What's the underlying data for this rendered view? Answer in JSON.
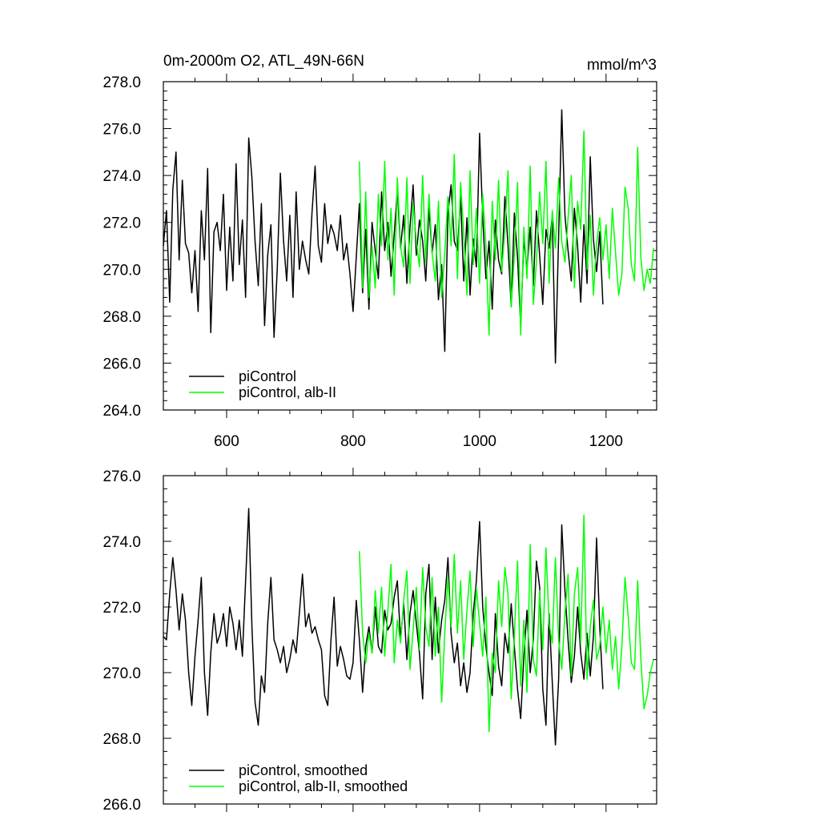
{
  "chart_data": [
    {
      "type": "line",
      "title_left": "0m-2000m O2, ATL_49N-66N",
      "title_right": "mmol/m^3",
      "xlim": [
        500,
        1280
      ],
      "ylim": [
        264,
        278
      ],
      "x_ticks": [
        600,
        800,
        1000,
        1200
      ],
      "x_tick_labels": [
        "600",
        "800",
        "1000",
        "1200"
      ],
      "y_ticks": [
        264,
        266,
        268,
        270,
        272,
        274,
        276,
        278
      ],
      "y_tick_labels": [
        "264.0",
        "266.0",
        "268.0",
        "270.0",
        "272.0",
        "274.0",
        "276.0",
        "278.0"
      ],
      "legend_position": "bottom-left",
      "series": [
        {
          "name": "piControl",
          "color": "#000000",
          "x": [
            500,
            505,
            510,
            515,
            520,
            525,
            530,
            535,
            540,
            545,
            550,
            555,
            560,
            565,
            570,
            575,
            580,
            585,
            590,
            595,
            600,
            605,
            610,
            615,
            620,
            625,
            630,
            635,
            640,
            645,
            650,
            655,
            660,
            665,
            670,
            675,
            680,
            685,
            690,
            695,
            700,
            705,
            710,
            715,
            720,
            725,
            730,
            735,
            740,
            745,
            750,
            755,
            760,
            765,
            770,
            775,
            780,
            785,
            790,
            795,
            800,
            805,
            810,
            815,
            820,
            825,
            830,
            835,
            840,
            845,
            850,
            855,
            860,
            865,
            870,
            875,
            880,
            885,
            890,
            895,
            900,
            905,
            910,
            915,
            920,
            925,
            930,
            935,
            940,
            945,
            950,
            955,
            960,
            965,
            970,
            975,
            980,
            985,
            990,
            995,
            1000,
            1005,
            1010,
            1015,
            1020,
            1025,
            1030,
            1035,
            1040,
            1045,
            1050,
            1055,
            1060,
            1065,
            1070,
            1075,
            1080,
            1085,
            1090,
            1095,
            1100,
            1105,
            1110,
            1115,
            1120,
            1125,
            1130,
            1135,
            1140,
            1145,
            1150,
            1155,
            1160,
            1165,
            1170,
            1175,
            1180,
            1185,
            1190,
            1195
          ],
          "values": [
            271.0,
            272.5,
            268.6,
            273.4,
            275.0,
            270.4,
            273.8,
            271.1,
            270.7,
            269.0,
            270.8,
            268.2,
            272.5,
            270.4,
            274.3,
            267.3,
            271.6,
            272.0,
            270.8,
            273.2,
            269.1,
            271.8,
            269.5,
            274.5,
            270.2,
            272.1,
            268.8,
            275.6,
            273.9,
            271.2,
            269.3,
            272.8,
            267.6,
            270.6,
            271.9,
            267.1,
            270.0,
            274.1,
            271.2,
            269.5,
            272.3,
            268.8,
            273.3,
            270.0,
            271.2,
            270.4,
            269.8,
            272.4,
            274.4,
            271.0,
            270.3,
            272.8,
            271.1,
            271.9,
            271.5,
            270.8,
            272.3,
            270.4,
            271.1,
            269.8,
            268.2,
            270.5,
            272.8,
            269.0,
            271.7,
            268.3,
            272.0,
            270.8,
            269.6,
            273.3,
            270.8,
            272.0,
            269.7,
            271.5,
            273.4,
            270.9,
            272.3,
            269.4,
            271.8,
            273.6,
            270.6,
            272.1,
            271.2,
            269.5,
            272.6,
            270.7,
            271.9,
            268.7,
            270.2,
            266.5,
            272.4,
            273.6,
            271.2,
            270.8,
            273.1,
            269.5,
            272.2,
            268.9,
            271.3,
            270.1,
            275.8,
            272.2,
            269.6,
            271.2,
            268.3,
            272.1,
            270.4,
            269.8,
            273.1,
            271.0,
            268.4,
            272.4,
            270.5,
            267.6,
            271.3,
            270.0,
            271.8,
            269.3,
            272.5,
            270.6,
            268.5,
            271.7,
            270.9,
            272.3,
            266.0,
            271.4,
            276.8,
            272.3,
            270.8,
            269.5,
            272.6,
            271.0,
            268.6,
            271.9,
            269.4,
            274.8,
            271.3,
            269.9,
            271.6,
            268.5
          ],
          "legend_label": "piControl"
        },
        {
          "name": "piControl, alb-II",
          "color": "#00ff00",
          "x": [
            810,
            815,
            820,
            825,
            830,
            835,
            840,
            845,
            850,
            855,
            860,
            865,
            870,
            875,
            880,
            885,
            890,
            895,
            900,
            905,
            910,
            915,
            920,
            925,
            930,
            935,
            940,
            945,
            950,
            955,
            960,
            965,
            970,
            975,
            980,
            985,
            990,
            995,
            1000,
            1005,
            1010,
            1015,
            1020,
            1025,
            1030,
            1035,
            1040,
            1045,
            1050,
            1055,
            1060,
            1065,
            1070,
            1075,
            1080,
            1085,
            1090,
            1095,
            1100,
            1105,
            1110,
            1115,
            1120,
            1125,
            1130,
            1135,
            1140,
            1145,
            1150,
            1155,
            1160,
            1165,
            1170,
            1175,
            1180,
            1185,
            1190,
            1195,
            1200,
            1205,
            1210,
            1215,
            1220,
            1225,
            1230,
            1235,
            1240,
            1245,
            1250,
            1255,
            1260,
            1265,
            1270,
            1275
          ],
          "values": [
            274.6,
            269.2,
            273.3,
            268.8,
            271.0,
            269.2,
            273.2,
            271.0,
            274.6,
            270.4,
            272.6,
            268.9,
            273.9,
            271.0,
            270.1,
            273.9,
            269.4,
            272.8,
            271.2,
            270.1,
            274.0,
            270.3,
            273.2,
            270.7,
            269.5,
            272.9,
            268.8,
            270.7,
            273.1,
            271.0,
            274.9,
            269.6,
            273.7,
            271.5,
            268.9,
            274.2,
            270.2,
            272.6,
            269.4,
            273.2,
            271.0,
            267.2,
            272.9,
            270.4,
            273.8,
            269.9,
            271.7,
            274.2,
            268.4,
            270.6,
            273.7,
            267.2,
            271.8,
            269.6,
            274.4,
            268.5,
            270.3,
            273.3,
            271.1,
            274.6,
            269.4,
            272.5,
            270.9,
            273.9,
            271.2,
            270.3,
            272.2,
            274.0,
            269.2,
            272.9,
            271.7,
            275.9,
            270.0,
            272.3,
            268.9,
            271.1,
            272.2,
            270.4,
            271.9,
            269.6,
            272.6,
            270.7,
            268.9,
            269.8,
            273.5,
            272.6,
            270.2,
            269.5,
            275.2,
            270.5,
            269.1,
            270.0,
            269.4,
            270.9
          ],
          "legend_label": "piControl, alb-II"
        }
      ]
    },
    {
      "type": "line",
      "xlim": [
        500,
        1280
      ],
      "ylim": [
        266,
        276
      ],
      "x_ticks": [
        600,
        800,
        1000,
        1200
      ],
      "y_ticks": [
        266,
        268,
        270,
        272,
        274,
        276
      ],
      "y_tick_labels": [
        "266.0",
        "268.0",
        "270.0",
        "272.0",
        "274.0",
        "276.0"
      ],
      "legend_position": "bottom-left",
      "series": [
        {
          "name": "piControl, smoothed",
          "color": "#000000",
          "x": [
            500,
            505,
            510,
            515,
            520,
            525,
            530,
            535,
            540,
            545,
            550,
            555,
            560,
            565,
            570,
            575,
            580,
            585,
            590,
            595,
            600,
            605,
            610,
            615,
            620,
            625,
            630,
            635,
            640,
            645,
            650,
            655,
            660,
            665,
            670,
            675,
            680,
            685,
            690,
            695,
            700,
            705,
            710,
            715,
            720,
            725,
            730,
            735,
            740,
            745,
            750,
            755,
            760,
            765,
            770,
            775,
            780,
            785,
            790,
            795,
            800,
            805,
            810,
            815,
            820,
            825,
            830,
            835,
            840,
            845,
            850,
            855,
            860,
            865,
            870,
            875,
            880,
            885,
            890,
            895,
            900,
            905,
            910,
            915,
            920,
            925,
            930,
            935,
            940,
            945,
            950,
            955,
            960,
            965,
            970,
            975,
            980,
            985,
            990,
            995,
            1000,
            1005,
            1010,
            1015,
            1020,
            1025,
            1030,
            1035,
            1040,
            1045,
            1050,
            1055,
            1060,
            1065,
            1070,
            1075,
            1080,
            1085,
            1090,
            1095,
            1100,
            1105,
            1110,
            1115,
            1120,
            1125,
            1130,
            1135,
            1140,
            1145,
            1150,
            1155,
            1160,
            1165,
            1170,
            1175,
            1180,
            1185,
            1190,
            1195
          ],
          "values": [
            271.1,
            271.0,
            272.4,
            273.5,
            272.5,
            271.3,
            272.4,
            271.6,
            270.0,
            269.0,
            270.5,
            271.6,
            272.9,
            270.0,
            268.7,
            270.6,
            271.8,
            270.9,
            271.2,
            271.8,
            270.8,
            272.0,
            271.5,
            270.7,
            271.6,
            270.5,
            272.8,
            275.0,
            271.4,
            269.1,
            268.4,
            269.9,
            269.4,
            271.5,
            272.9,
            271.0,
            270.7,
            270.3,
            270.8,
            270.0,
            270.4,
            271.0,
            270.6,
            271.8,
            273.0,
            271.4,
            271.8,
            271.2,
            271.4,
            271.0,
            270.7,
            269.3,
            269.0,
            271.0,
            272.3,
            270.2,
            270.8,
            270.4,
            269.9,
            269.8,
            270.3,
            272.2,
            271.0,
            269.4,
            270.8,
            271.4,
            270.6,
            272.0,
            270.8,
            270.6,
            271.9,
            271.3,
            271.5,
            272.3,
            272.8,
            271.0,
            272.1,
            270.4,
            271.8,
            272.5,
            271.5,
            270.6,
            269.2,
            272.4,
            273.3,
            270.4,
            272.3,
            270.6,
            271.6,
            272.2,
            273.5,
            271.2,
            270.3,
            270.9,
            269.6,
            270.3,
            269.4,
            270.0,
            271.8,
            272.8,
            274.6,
            272.0,
            270.8,
            270.0,
            269.3,
            271.8,
            270.2,
            269.6,
            271.2,
            270.6,
            272.1,
            270.8,
            269.5,
            268.6,
            270.5,
            271.9,
            270.0,
            271.0,
            273.4,
            272.6,
            269.5,
            268.4,
            271.8,
            269.7,
            267.8,
            269.8,
            274.5,
            272.5,
            271.0,
            269.7,
            270.5,
            272.0,
            270.6,
            269.8,
            271.2,
            269.9,
            271.1,
            274.1,
            271.4,
            269.5
          ],
          "legend_label": "piControl, smoothed"
        },
        {
          "name": "piControl, alb-II, smoothed",
          "color": "#00ff00",
          "x": [
            810,
            815,
            820,
            825,
            830,
            835,
            840,
            845,
            850,
            855,
            860,
            865,
            870,
            875,
            880,
            885,
            890,
            895,
            900,
            905,
            910,
            915,
            920,
            925,
            930,
            935,
            940,
            945,
            950,
            955,
            960,
            965,
            970,
            975,
            980,
            985,
            990,
            995,
            1000,
            1005,
            1010,
            1015,
            1020,
            1025,
            1030,
            1035,
            1040,
            1045,
            1050,
            1055,
            1060,
            1065,
            1070,
            1075,
            1080,
            1085,
            1090,
            1095,
            1100,
            1105,
            1110,
            1115,
            1120,
            1125,
            1130,
            1135,
            1140,
            1145,
            1150,
            1155,
            1160,
            1165,
            1170,
            1175,
            1180,
            1185,
            1190,
            1195,
            1200,
            1205,
            1210,
            1215,
            1220,
            1225,
            1230,
            1235,
            1240,
            1245,
            1250,
            1255,
            1260,
            1265,
            1270,
            1275
          ],
          "values": [
            273.7,
            271.2,
            270.3,
            271.2,
            270.6,
            272.5,
            271.2,
            272.6,
            270.5,
            271.9,
            273.3,
            270.3,
            271.6,
            270.9,
            272.2,
            273.1,
            270.1,
            271.3,
            272.6,
            270.7,
            273.2,
            271.4,
            270.8,
            272.9,
            270.5,
            272.0,
            269.1,
            271.2,
            272.9,
            271.4,
            273.6,
            271.2,
            272.8,
            270.4,
            271.9,
            273.1,
            270.8,
            272.6,
            271.5,
            270.5,
            272.3,
            268.2,
            270.6,
            270.0,
            272.8,
            271.4,
            273.2,
            272.4,
            269.2,
            271.1,
            273.4,
            269.6,
            271.6,
            269.4,
            273.9,
            270.4,
            269.9,
            272.5,
            270.7,
            273.8,
            271.5,
            270.9,
            273.5,
            271.0,
            270.1,
            271.8,
            273.0,
            269.9,
            272.4,
            273.2,
            270.9,
            274.8,
            269.8,
            271.4,
            272.2,
            270.4,
            270.8,
            272.0,
            270.6,
            271.6,
            270.1,
            271.1,
            269.5,
            270.8,
            272.9,
            271.7,
            270.3,
            270.1,
            272.8,
            270.4,
            268.9,
            269.3,
            270.0,
            270.4
          ],
          "legend_label": "piControl, alb-II, smoothed"
        }
      ]
    }
  ]
}
